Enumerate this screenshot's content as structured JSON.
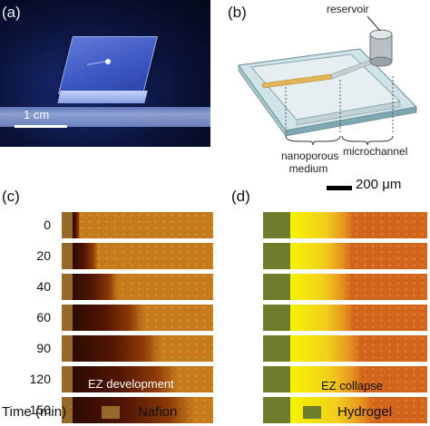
{
  "panels": {
    "a": {
      "label": "(a)",
      "scale_text": "1 cm"
    },
    "b": {
      "label": "(b)",
      "reservoir": "reservoir",
      "nanoporous": "nanoporous",
      "medium": "medium",
      "microchannel": "microchannel"
    },
    "c": {
      "label": "(c)",
      "caption": "EZ development"
    },
    "d": {
      "label": "(d)",
      "caption": "EZ collapse",
      "scale_text": "200 μm"
    }
  },
  "time_axis": {
    "label": "Time (min)",
    "values": [
      "0",
      "20",
      "40",
      "60",
      "90",
      "120",
      "150"
    ]
  },
  "ez_width_fraction": {
    "c": [
      0.05,
      0.18,
      0.32,
      0.5,
      0.62,
      0.74,
      0.85
    ],
    "d": [
      0.23,
      0.22,
      0.22,
      0.23,
      0.25,
      0.26,
      0.3
    ]
  },
  "legend": {
    "nafion": {
      "label": "Nafion",
      "color": "#96682a"
    },
    "hydrogel": {
      "label": "Hydrogel",
      "color": "#6d7d2c"
    }
  }
}
